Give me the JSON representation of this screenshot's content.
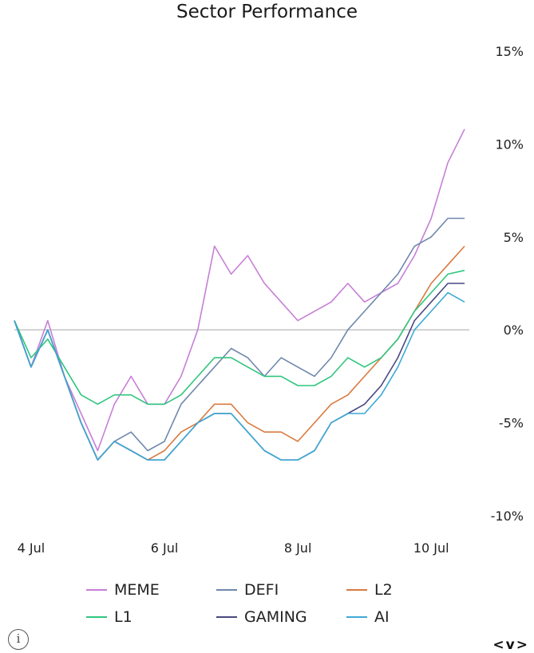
{
  "chart_data": {
    "type": "line",
    "title": "Sector Performance",
    "x": [
      "3 Jul 18:00",
      "4 Jul 00:00",
      "4 Jul 06:00",
      "4 Jul 12:00",
      "4 Jul 18:00",
      "5 Jul 00:00",
      "5 Jul 06:00",
      "5 Jul 12:00",
      "5 Jul 18:00",
      "6 Jul 00:00",
      "6 Jul 06:00",
      "6 Jul 12:00",
      "6 Jul 18:00",
      "7 Jul 00:00",
      "7 Jul 06:00",
      "7 Jul 12:00",
      "7 Jul 18:00",
      "8 Jul 00:00",
      "8 Jul 06:00",
      "8 Jul 12:00",
      "8 Jul 18:00",
      "9 Jul 00:00",
      "9 Jul 06:00",
      "9 Jul 12:00",
      "9 Jul 18:00",
      "10 Jul 00:00",
      "10 Jul 06:00",
      "10 Jul 12:00"
    ],
    "x_ticks": [
      "4 Jul",
      "6 Jul",
      "8 Jul",
      "10 Jul"
    ],
    "x_tick_positions": [
      "4 Jul 00:00",
      "6 Jul 00:00",
      "8 Jul 00:00",
      "10 Jul 00:00"
    ],
    "y_ticks": [
      "15%",
      "10%",
      "5%",
      "0%",
      "-5%",
      "-10%"
    ],
    "y_tick_values": [
      15,
      10,
      5,
      0,
      -5,
      -10
    ],
    "ylim": [
      -10,
      15
    ],
    "y_axis_side": "right",
    "zero_line": true,
    "legend_position": "bottom",
    "series": [
      {
        "name": "MEME",
        "color": "#c77fd6",
        "values": [
          0.5,
          -2.0,
          0.5,
          -2.5,
          -4.5,
          -6.5,
          -4.0,
          -2.5,
          -4.0,
          -4.0,
          -2.5,
          0.0,
          4.5,
          3.0,
          4.0,
          2.5,
          1.5,
          0.5,
          1.0,
          1.5,
          2.5,
          1.5,
          2.0,
          2.5,
          4.0,
          6.0,
          9.0,
          10.8
        ]
      },
      {
        "name": "DEFI",
        "color": "#6f87ad",
        "values": [
          0.5,
          -2.0,
          0.0,
          -2.5,
          -5.0,
          -7.0,
          -6.0,
          -5.5,
          -6.5,
          -6.0,
          -4.0,
          -3.0,
          -2.0,
          -1.0,
          -1.5,
          -2.5,
          -1.5,
          -2.0,
          -2.5,
          -1.5,
          0.0,
          1.0,
          2.0,
          3.0,
          4.5,
          5.0,
          6.0,
          6.0
        ]
      },
      {
        "name": "L2",
        "color": "#d97a3f",
        "values": [
          0.5,
          -2.0,
          0.0,
          -2.5,
          -5.0,
          -7.0,
          -6.0,
          -6.5,
          -7.0,
          -6.5,
          -5.5,
          -5.0,
          -4.0,
          -4.0,
          -5.0,
          -5.5,
          -5.5,
          -6.0,
          -5.0,
          -4.0,
          -3.5,
          -2.5,
          -1.5,
          -0.5,
          1.0,
          2.5,
          3.5,
          4.5
        ]
      },
      {
        "name": "L1",
        "color": "#2fc67e",
        "values": [
          0.5,
          -1.5,
          -0.5,
          -2.0,
          -3.5,
          -4.0,
          -3.5,
          -3.5,
          -4.0,
          -4.0,
          -3.5,
          -2.5,
          -1.5,
          -1.5,
          -2.0,
          -2.5,
          -2.5,
          -3.0,
          -3.0,
          -2.5,
          -1.5,
          -2.0,
          -1.5,
          -0.5,
          1.0,
          2.0,
          3.0,
          3.2
        ]
      },
      {
        "name": "GAMING",
        "color": "#4a4880",
        "values": [
          0.5,
          -2.0,
          0.0,
          -2.5,
          -5.0,
          -7.0,
          -6.0,
          -6.5,
          -7.0,
          -7.0,
          -6.0,
          -5.0,
          -4.5,
          -4.5,
          -5.5,
          -6.5,
          -7.0,
          -7.0,
          -6.5,
          -5.0,
          -4.5,
          -4.0,
          -3.0,
          -1.5,
          0.5,
          1.5,
          2.5,
          2.5
        ]
      },
      {
        "name": "AI",
        "color": "#3fa9d6",
        "values": [
          0.5,
          -2.0,
          0.0,
          -2.5,
          -5.0,
          -7.0,
          -6.0,
          -6.5,
          -7.0,
          -7.0,
          -6.0,
          -5.0,
          -4.5,
          -4.5,
          -5.5,
          -6.5,
          -7.0,
          -7.0,
          -6.5,
          -5.0,
          -4.5,
          -4.5,
          -3.5,
          -2.0,
          0.0,
          1.0,
          2.0,
          1.5
        ]
      }
    ]
  },
  "controls": {
    "info_icon": "info-icon",
    "nav_prev": "<",
    "nav_toggle": "v",
    "nav_next": ">"
  }
}
